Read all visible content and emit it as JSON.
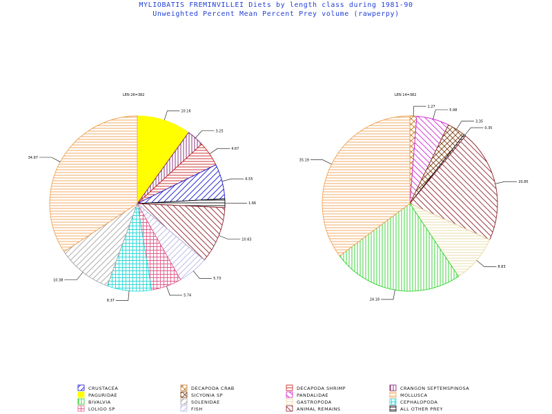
{
  "header": {
    "title": "MYLIOBATIS FREMINVILLEI Diets by length class during 1981-90",
    "subtitle": "Unweighted Percent Mean Percent Prey  volume (rawperpy)"
  },
  "legend": [
    {
      "name": "CRUSTACEA",
      "color": "#1414d2",
      "pattern": "diag-up"
    },
    {
      "name": "DECAPODA CRAB",
      "color": "#c07828",
      "pattern": "cross-diag"
    },
    {
      "name": "DECAPODA SHRIMP",
      "color": "#c81e1e",
      "pattern": "horiz"
    },
    {
      "name": "CRANGON SEPTEMSPINOSA",
      "color": "#7a1e6e",
      "pattern": "vert"
    },
    {
      "name": "PAGURIDAE",
      "color": "#ffff00",
      "pattern": "solid"
    },
    {
      "name": "SICYONIA SP",
      "color": "#7a3a10",
      "pattern": "cross-diag"
    },
    {
      "name": "PANDALIDAE",
      "color": "#d01ed0",
      "pattern": "diag-down"
    },
    {
      "name": "MOLLUSCA",
      "color": "#f0a050",
      "pattern": "horiz"
    },
    {
      "name": "BIVALVIA",
      "color": "#28d228",
      "pattern": "vert"
    },
    {
      "name": "SOLENIDAE",
      "color": "#a0a0a0",
      "pattern": "diag-up"
    },
    {
      "name": "GASTROPODA",
      "color": "#e8d8a0",
      "pattern": "horiz"
    },
    {
      "name": "CEPHALOPODA",
      "color": "#28d8d8",
      "pattern": "grid"
    },
    {
      "name": "LOLIGO SP",
      "color": "#e05a8a",
      "pattern": "grid"
    },
    {
      "name": "FISH",
      "color": "#b4b4e6",
      "pattern": "diag-up"
    },
    {
      "name": "ANIMAL REMAINS",
      "color": "#8c1e28",
      "pattern": "diag-down"
    },
    {
      "name": "ALL OTHER PREY",
      "color": "#000000",
      "pattern": "horiz"
    }
  ],
  "chart_data": [
    {
      "type": "pie",
      "label": "LEN 26=382",
      "slices": [
        {
          "category": "PAGURIDAE",
          "value": 10.16,
          "label": "10.16"
        },
        {
          "category": "CRANGON SEPTEMSPINOSA",
          "value": 3.25,
          "label": "3.25"
        },
        {
          "category": "DECAPODA SHRIMP",
          "value": 4.67,
          "label": "4.67"
        },
        {
          "category": "CRUSTACEA",
          "value": 6.55,
          "label": "6.55"
        },
        {
          "category": "ALL OTHER PREY",
          "value": 1.66,
          "label": "1.66"
        },
        {
          "category": "ANIMAL REMAINS",
          "value": 10.63,
          "label": "10.63"
        },
        {
          "category": "FISH",
          "value": 5.73,
          "label": "5.73"
        },
        {
          "category": "LOLIGO SP",
          "value": 5.74,
          "label": "5.74"
        },
        {
          "category": "CEPHALOPODA",
          "value": 8.37,
          "label": "8.37"
        },
        {
          "category": "SOLENIDAE",
          "value": 10.38,
          "label": "10.38"
        },
        {
          "category": "MOLLUSCA",
          "value": 34.97,
          "label": "34.97"
        }
      ]
    },
    {
      "type": "pie",
      "label": "LEN 14=382",
      "slices": [
        {
          "category": "DECAPODA CRAB",
          "value": 1.27,
          "label": "1.27"
        },
        {
          "category": "PANDALIDAE",
          "value": 5.98,
          "label": "5.98"
        },
        {
          "category": "SICYONIA SP",
          "value": 3.35,
          "label": "3.35"
        },
        {
          "category": "ALL OTHER PREY",
          "value": 0.35,
          "label": "0.35"
        },
        {
          "category": "ANIMAL REMAINS",
          "value": 20.85,
          "label": "20.85"
        },
        {
          "category": "GASTROPODA",
          "value": 8.83,
          "label": "8.83"
        },
        {
          "category": "BIVALVIA",
          "value": 24.18,
          "label": "24.18"
        },
        {
          "category": "MOLLUSCA",
          "value": 35.19,
          "label": "35.19"
        }
      ]
    }
  ]
}
